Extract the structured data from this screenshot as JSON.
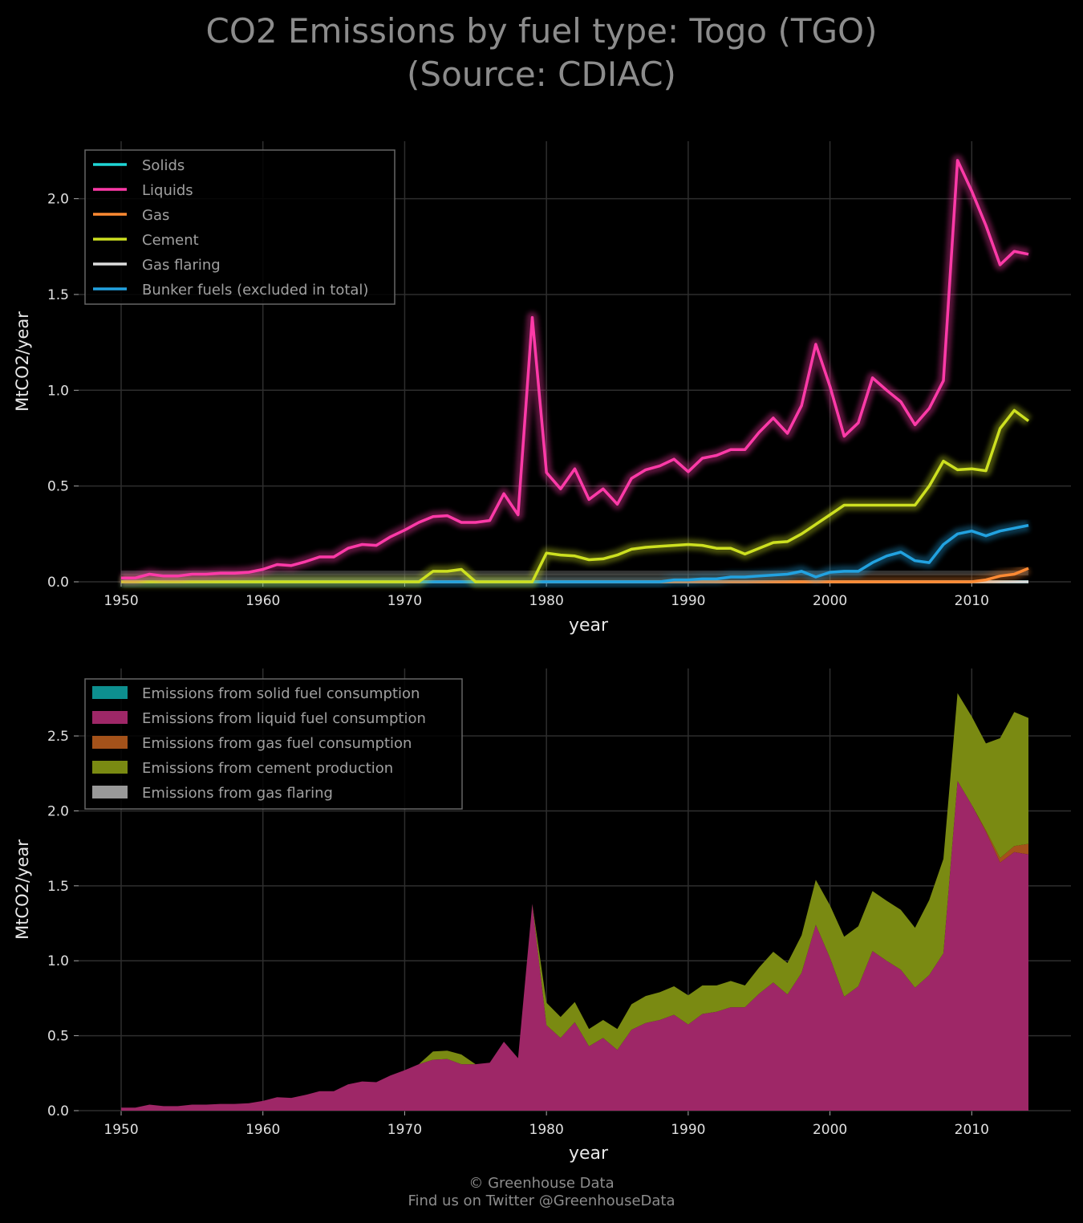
{
  "title": {
    "line1": "CO2 Emissions by fuel type: Togo (TGO)",
    "line2": "(Source: CDIAC)"
  },
  "footer": {
    "copyright": "© Greenhouse Data",
    "twitter": "Find us on Twitter @GreenhouseData"
  },
  "colors": {
    "background": "#000000",
    "grid": "#2e2e2e",
    "solids": "#1fd6d6",
    "liquids": "#ff3aa8",
    "gas": "#ff8a33",
    "cement": "#cde020",
    "flaring": "#dddddd",
    "bunker": "#22a2e0",
    "area_solids": "#0d8f8f",
    "area_liquids": "#9e2767",
    "area_gas": "#a4521a",
    "area_cement": "#7a8a12",
    "area_flaring": "#999999"
  },
  "chart_data": [
    {
      "type": "line",
      "xlabel": "year",
      "ylabel": "MtCO2/year",
      "xlim": [
        1947,
        2017
      ],
      "ylim": [
        0,
        2.3
      ],
      "xticks": [
        1950,
        1960,
        1970,
        1980,
        1990,
        2000,
        2010
      ],
      "yticks": [
        0.0,
        0.5,
        1.0,
        1.5,
        2.0
      ],
      "ytick_labels": [
        "0.0",
        "0.5",
        "1.0",
        "1.5",
        "2.0"
      ],
      "grid": true,
      "legend_position": "top-left",
      "x": [
        1950,
        1951,
        1952,
        1953,
        1954,
        1955,
        1956,
        1957,
        1958,
        1959,
        1960,
        1961,
        1962,
        1963,
        1964,
        1965,
        1966,
        1967,
        1968,
        1969,
        1970,
        1971,
        1972,
        1973,
        1974,
        1975,
        1976,
        1977,
        1978,
        1979,
        1980,
        1981,
        1982,
        1983,
        1984,
        1985,
        1986,
        1987,
        1988,
        1989,
        1990,
        1991,
        1992,
        1993,
        1994,
        1995,
        1996,
        1997,
        1998,
        1999,
        2000,
        2001,
        2002,
        2003,
        2004,
        2005,
        2006,
        2007,
        2008,
        2009,
        2010,
        2011,
        2012,
        2013,
        2014
      ],
      "series": [
        {
          "name": "Solids",
          "color_key": "solids",
          "values": [
            0,
            0,
            0,
            0,
            0,
            0,
            0,
            0,
            0,
            0,
            0,
            0,
            0,
            0,
            0,
            0,
            0,
            0,
            0,
            0,
            0,
            0,
            0,
            0,
            0,
            0,
            0,
            0,
            0,
            0,
            0,
            0,
            0,
            0,
            0,
            0,
            0,
            0,
            0,
            0,
            0,
            0,
            0,
            0,
            0,
            0,
            0,
            0,
            0,
            0,
            0,
            0,
            0,
            0,
            0,
            0,
            0,
            0,
            0,
            0,
            0,
            0,
            0,
            0,
            0
          ]
        },
        {
          "name": "Liquids",
          "color_key": "liquids",
          "values": [
            0.02,
            0.02,
            0.04,
            0.03,
            0.03,
            0.04,
            0.04,
            0.045,
            0.045,
            0.05,
            0.065,
            0.09,
            0.085,
            0.105,
            0.13,
            0.13,
            0.175,
            0.195,
            0.19,
            0.235,
            0.27,
            0.31,
            0.34,
            0.345,
            0.31,
            0.31,
            0.32,
            0.46,
            0.35,
            1.38,
            0.57,
            0.485,
            0.59,
            0.43,
            0.485,
            0.405,
            0.54,
            0.585,
            0.605,
            0.64,
            0.575,
            0.645,
            0.66,
            0.69,
            0.69,
            0.78,
            0.855,
            0.775,
            0.92,
            1.24,
            1.02,
            0.76,
            0.83,
            1.065,
            1.0,
            0.94,
            0.82,
            0.905,
            1.05,
            2.2,
            2.04,
            1.86,
            1.655,
            1.725,
            1.71
          ]
        },
        {
          "name": "Gas",
          "color_key": "gas",
          "values": [
            0,
            0,
            0,
            0,
            0,
            0,
            0,
            0,
            0,
            0,
            0,
            0,
            0,
            0,
            0,
            0,
            0,
            0,
            0,
            0,
            0,
            0,
            0,
            0,
            0,
            0,
            0,
            0,
            0,
            0,
            0,
            0,
            0,
            0,
            0,
            0,
            0,
            0,
            0,
            0,
            0,
            0,
            0,
            0,
            0,
            0,
            0,
            0,
            0,
            0,
            0,
            0,
            0,
            0,
            0,
            0,
            0,
            0,
            0,
            0,
            0,
            0.01,
            0.03,
            0.04,
            0.07
          ]
        },
        {
          "name": "Cement",
          "color_key": "cement",
          "values": [
            0,
            0,
            0,
            0,
            0,
            0,
            0,
            0,
            0,
            0,
            0,
            0,
            0,
            0,
            0,
            0,
            0,
            0,
            0,
            0,
            0,
            0,
            0.055,
            0.055,
            0.065,
            0,
            0,
            0,
            0,
            0,
            0.15,
            0.14,
            0.135,
            0.115,
            0.12,
            0.14,
            0.17,
            0.18,
            0.185,
            0.19,
            0.195,
            0.19,
            0.175,
            0.175,
            0.145,
            0.175,
            0.205,
            0.21,
            0.25,
            0.3,
            0.35,
            0.4,
            0.4,
            0.4,
            0.4,
            0.4,
            0.4,
            0.5,
            0.63,
            0.585,
            0.59,
            0.58,
            0.8,
            0.895,
            0.84
          ]
        },
        {
          "name": "Gas flaring",
          "color_key": "flaring",
          "values": [
            0,
            0,
            0,
            0,
            0,
            0,
            0,
            0,
            0,
            0,
            0,
            0,
            0,
            0,
            0,
            0,
            0,
            0,
            0,
            0,
            0,
            0,
            0,
            0,
            0,
            0,
            0,
            0,
            0,
            0,
            0,
            0,
            0,
            0,
            0,
            0,
            0,
            0,
            0,
            0,
            0,
            0,
            0,
            0,
            0,
            0,
            0,
            0,
            0,
            0,
            0,
            0,
            0,
            0,
            0,
            0,
            0,
            0,
            0,
            0,
            0,
            0,
            0,
            0,
            0
          ]
        },
        {
          "name": "Bunker fuels (excluded in total)",
          "color_key": "bunker",
          "values": [
            0,
            0,
            0,
            0,
            0,
            0,
            0,
            0,
            0,
            0,
            0,
            0,
            0,
            0,
            0,
            0,
            0,
            0,
            0,
            0,
            0,
            0,
            0,
            0,
            0,
            0,
            0,
            0,
            0,
            0,
            0,
            0,
            0,
            0,
            0,
            0,
            0,
            0,
            0,
            0.01,
            0.01,
            0.015,
            0.015,
            0.025,
            0.025,
            0.03,
            0.035,
            0.04,
            0.055,
            0.025,
            0.05,
            0.055,
            0.055,
            0.1,
            0.135,
            0.155,
            0.11,
            0.1,
            0.195,
            0.25,
            0.265,
            0.24,
            0.265,
            0.28,
            0.295
          ]
        }
      ]
    },
    {
      "type": "area",
      "stacked": true,
      "xlabel": "year",
      "ylabel": "MtCO2/year",
      "xlim": [
        1947,
        2017
      ],
      "ylim": [
        0,
        2.95
      ],
      "xticks": [
        1950,
        1960,
        1970,
        1980,
        1990,
        2000,
        2010
      ],
      "yticks": [
        0.0,
        0.5,
        1.0,
        1.5,
        2.0,
        2.5
      ],
      "ytick_labels": [
        "0.0",
        "0.5",
        "1.0",
        "1.5",
        "2.0",
        "2.5"
      ],
      "grid": true,
      "legend_position": "top-left",
      "series": [
        {
          "name": "Emissions from solid fuel consumption",
          "color_key": "area_solids",
          "source_index": 0
        },
        {
          "name": "Emissions from liquid fuel consumption",
          "color_key": "area_liquids",
          "source_index": 1
        },
        {
          "name": "Emissions from gas fuel consumption",
          "color_key": "area_gas",
          "source_index": 2
        },
        {
          "name": "Emissions from cement production",
          "color_key": "area_cement",
          "source_index": 3
        },
        {
          "name": "Emissions from gas flaring",
          "color_key": "area_flaring",
          "source_index": 4
        }
      ]
    }
  ]
}
